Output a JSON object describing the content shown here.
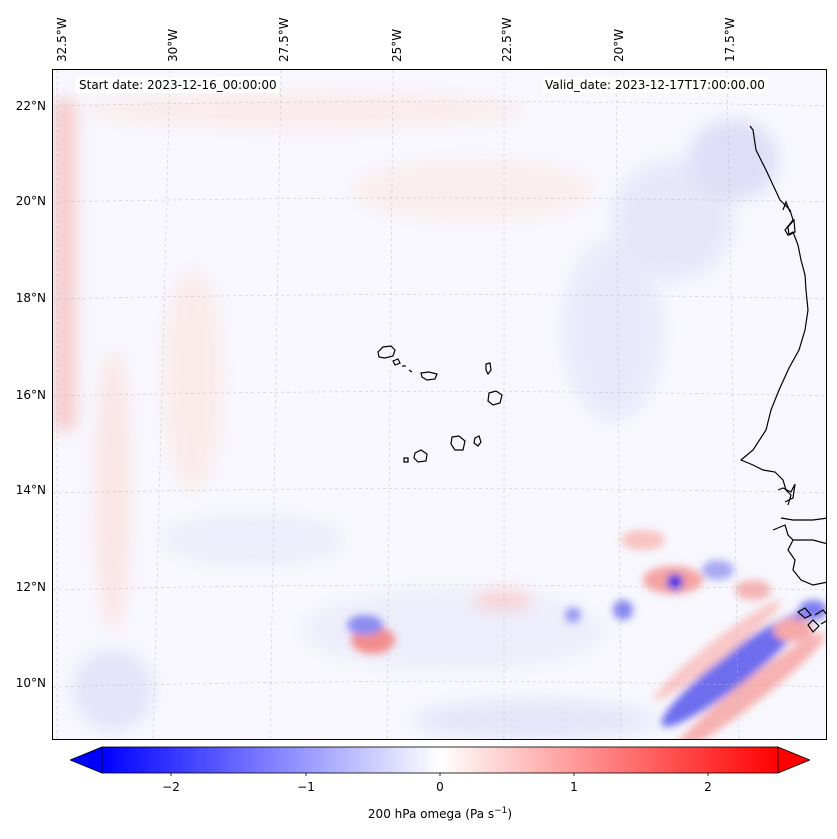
{
  "map": {
    "start_date": "Start date: 2023-12-16_00:00:00",
    "valid_date": "Valid_date: 2023-12-17T17:00:00.00",
    "lon_labels": [
      "32.5°W",
      "30°W",
      "27.5°W",
      "25°W",
      "22.5°W",
      "20°W",
      "17.5°W"
    ],
    "lat_labels": [
      "22°N",
      "20°N",
      "18°N",
      "16°N",
      "14°N",
      "12°N",
      "10°N"
    ],
    "colorbar": {
      "ticks": [
        "−2",
        "−1",
        "0",
        "1",
        "2"
      ],
      "label": "200 hPa omega (Pa s",
      "label_exp": "−1",
      "label_close": ")",
      "min": -2.5,
      "max": 2.5,
      "low_color": "#0000ff",
      "mid_color": "#ffffff",
      "high_color": "#ff0000"
    },
    "features": {
      "coastline": "West Africa coastline",
      "islands": "Cape Verde islands"
    }
  }
}
